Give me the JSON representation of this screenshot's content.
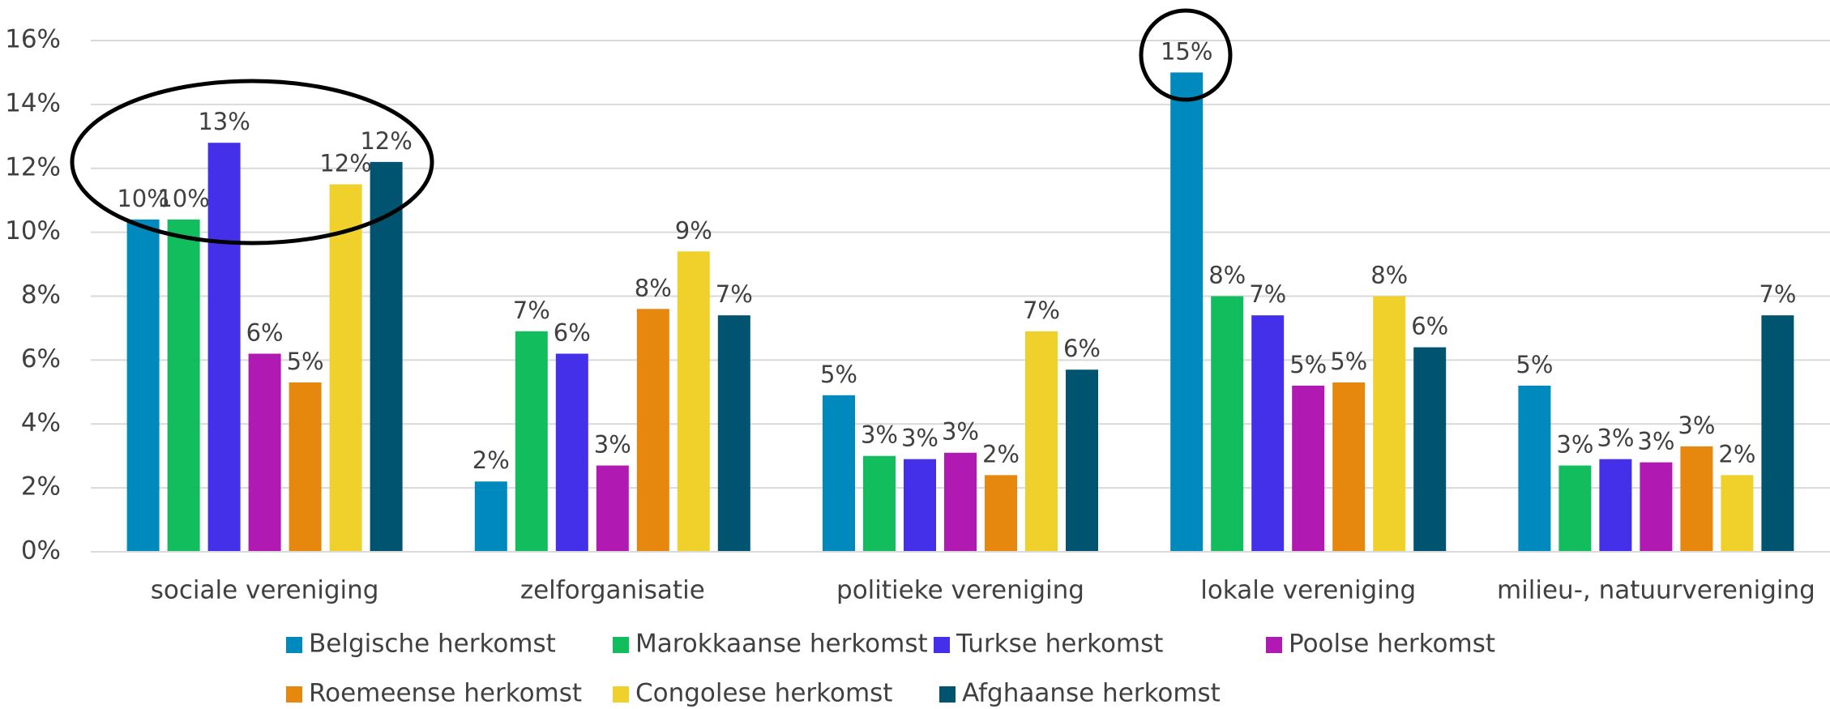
{
  "chart_data": {
    "type": "bar",
    "categories": [
      "sociale vereniging",
      "zelforganisatie",
      "politieke vereniging",
      "lokale vereniging",
      "milieu-, natuurvereniging"
    ],
    "series": [
      {
        "name": "Belgische herkomst",
        "color": "#0089bd",
        "values": [
          10.4,
          2.2,
          4.9,
          15.0,
          5.2
        ],
        "value_labels": [
          "10%",
          "2%",
          "5%",
          "15%",
          "5%"
        ]
      },
      {
        "name": "Marokkaanse herkomst",
        "color": "#12bd5d",
        "values": [
          10.4,
          6.9,
          3.0,
          8.0,
          2.7
        ],
        "value_labels": [
          "10%",
          "7%",
          "3%",
          "8%",
          "3%"
        ]
      },
      {
        "name": "Turkse herkomst",
        "color": "#4430e8",
        "values": [
          12.8,
          6.2,
          2.9,
          7.4,
          2.9
        ],
        "value_labels": [
          "13%",
          "6%",
          "3%",
          "7%",
          "3%"
        ]
      },
      {
        "name": "Poolse herkomst",
        "color": "#b01ab3",
        "values": [
          6.2,
          2.7,
          3.1,
          5.2,
          2.8
        ],
        "value_labels": [
          "6%",
          "3%",
          "3%",
          "5%",
          "3%"
        ]
      },
      {
        "name": "Roemeense herkomst",
        "color": "#e6870e",
        "values": [
          5.3,
          7.6,
          2.4,
          5.3,
          3.3
        ],
        "value_labels": [
          "5%",
          "8%",
          "2%",
          "5%",
          "3%"
        ]
      },
      {
        "name": "Congolese herkomst",
        "color": "#f0d02a",
        "values": [
          11.5,
          9.4,
          6.9,
          8.0,
          2.4
        ],
        "value_labels": [
          "12%",
          "9%",
          "7%",
          "8%",
          "2%"
        ]
      },
      {
        "name": "Afghaanse herkomst",
        "color": "#005470",
        "values": [
          12.2,
          7.4,
          5.7,
          6.4,
          7.4
        ],
        "value_labels": [
          "12%",
          "7%",
          "6%",
          "6%",
          "7%"
        ]
      }
    ],
    "ylim": [
      0,
      16
    ],
    "yticks": [
      {
        "value": 0,
        "label": "0%"
      },
      {
        "value": 2,
        "label": "2%"
      },
      {
        "value": 4,
        "label": "4%"
      },
      {
        "value": 6,
        "label": "6%"
      },
      {
        "value": 8,
        "label": "8%"
      },
      {
        "value": 10,
        "label": "10%"
      },
      {
        "value": 12,
        "label": "12%"
      },
      {
        "value": 14,
        "label": "14%"
      },
      {
        "value": 16,
        "label": "16%"
      }
    ],
    "grid": true
  }
}
